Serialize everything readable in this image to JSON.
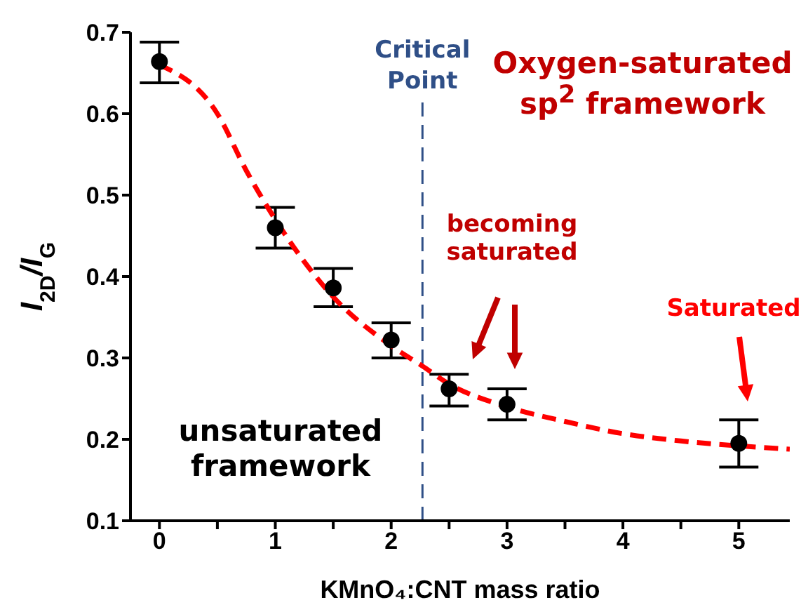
{
  "chart_data": {
    "type": "scatter",
    "xlabel": "KMnO₄:CNT mass ratio",
    "ylabel": "I$_{2D}$/I$_{G}$",
    "xlim": [
      -0.25,
      5.44
    ],
    "ylim": [
      0.1,
      0.7
    ],
    "xticks": [
      0,
      {
        "value": 0.5,
        "label": null
      },
      1,
      {
        "value": 1.5,
        "label": null
      },
      2,
      {
        "value": 2.5,
        "label": null
      },
      3,
      {
        "value": 3.5,
        "label": null
      },
      4,
      {
        "value": 4.5,
        "label": null
      },
      5
    ],
    "yticks": [
      0.1,
      0.2,
      0.3,
      0.4,
      0.5,
      0.6,
      0.7
    ],
    "marker": "circle",
    "series": [
      {
        "color": "#000000",
        "x": [
          0,
          1,
          1.5,
          2,
          2.5,
          3,
          5
        ],
        "values": [
          0.664,
          0.46,
          0.386,
          0.322,
          0.262,
          0.243,
          0.195
        ],
        "errors": [
          [
            0.638,
            0.688
          ],
          [
            0.435,
            0.485
          ],
          [
            0.363,
            0.41
          ],
          [
            0.3,
            0.343
          ],
          [
            0.241,
            0.28
          ],
          [
            0.224,
            0.262
          ],
          [
            0.166,
            0.224
          ]
        ]
      },
      {
        "type": "line",
        "color": "#ff0000",
        "line_style": "dashed",
        "marker": "none",
        "x": [
          0,
          0.5,
          0.75,
          1,
          1.5,
          2,
          2.27,
          2.5,
          3,
          3.5,
          4,
          4.5,
          5,
          5.44
        ],
        "values": [
          0.66,
          0.6,
          0.53,
          0.47,
          0.375,
          0.315,
          0.29,
          0.268,
          0.24,
          0.222,
          0.207,
          0.198,
          0.192,
          0.188
        ]
      }
    ],
    "ref_lines": [
      {
        "axis": "x",
        "value": 2.27,
        "label": "Critical Point",
        "color": "#2f4f87",
        "line_style": "dashed"
      }
    ],
    "annotations": [
      "Oxygen-saturated sp$^{2}$ framework",
      "becoming saturated",
      "Saturated",
      "unsaturated framework"
    ]
  }
}
